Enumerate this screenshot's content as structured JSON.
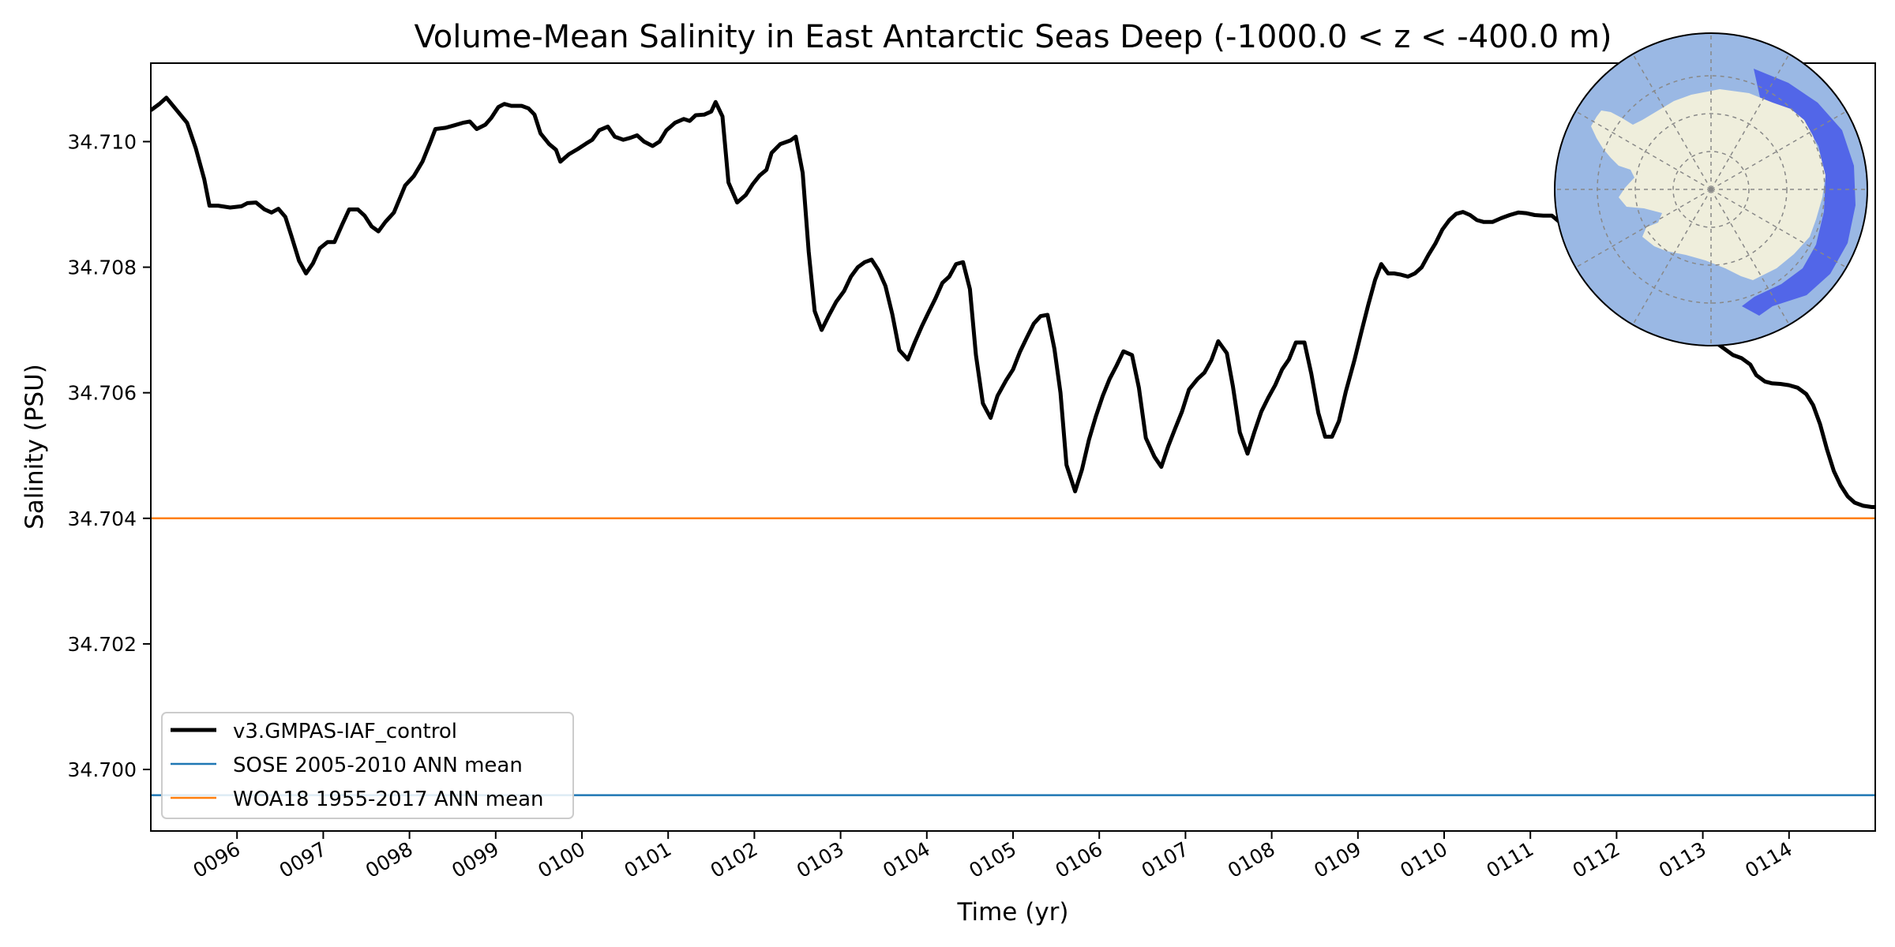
{
  "chart_data": {
    "type": "line",
    "title": "Volume-Mean Salinity in East Antarctic Seas Deep (-1000.0 < z < -400.0 m)",
    "xlabel": "Time (yr)",
    "ylabel": "Salinity (PSU)",
    "xlim": [
      95.0,
      115.0
    ],
    "ylim": [
      34.69902,
      34.71125
    ],
    "x_ticks": [
      96,
      97,
      98,
      99,
      100,
      101,
      102,
      103,
      104,
      105,
      106,
      107,
      108,
      109,
      110,
      111,
      112,
      113,
      114
    ],
    "x_tick_labels": [
      "0096",
      "0097",
      "0098",
      "0099",
      "0100",
      "0101",
      "0102",
      "0103",
      "0104",
      "0105",
      "0106",
      "0107",
      "0108",
      "0109",
      "0110",
      "0111",
      "0112",
      "0113",
      "0114"
    ],
    "y_ticks": [
      34.7,
      34.702,
      34.704,
      34.706,
      34.708,
      34.71
    ],
    "y_tick_labels": [
      "34.700",
      "34.702",
      "34.704",
      "34.706",
      "34.708",
      "34.710"
    ],
    "grid": false,
    "legend_position": "lower-left",
    "series": [
      {
        "name": "v3.GMPAS-IAF_control",
        "color": "#000000",
        "points": [
          [
            95.0,
            34.7105
          ],
          [
            95.1,
            34.7106
          ],
          [
            95.18,
            34.7107
          ],
          [
            95.3,
            34.7105
          ],
          [
            95.42,
            34.7103
          ],
          [
            95.52,
            34.7099
          ],
          [
            95.62,
            34.7094
          ],
          [
            95.68,
            34.70898
          ],
          [
            95.78,
            34.70898
          ],
          [
            95.92,
            34.70895
          ],
          [
            96.05,
            34.70897
          ],
          [
            96.12,
            34.70902
          ],
          [
            96.22,
            34.70903
          ],
          [
            96.32,
            34.70892
          ],
          [
            96.4,
            34.70887
          ],
          [
            96.48,
            34.70893
          ],
          [
            96.56,
            34.7088
          ],
          [
            96.63,
            34.7085
          ],
          [
            96.72,
            34.7081
          ],
          [
            96.8,
            34.7079
          ],
          [
            96.88,
            34.70806
          ],
          [
            96.96,
            34.7083
          ],
          [
            97.05,
            34.7084
          ],
          [
            97.13,
            34.7084
          ],
          [
            97.22,
            34.70868
          ],
          [
            97.3,
            34.70892
          ],
          [
            97.4,
            34.70892
          ],
          [
            97.48,
            34.70882
          ],
          [
            97.56,
            34.70865
          ],
          [
            97.64,
            34.70857
          ],
          [
            97.72,
            34.70872
          ],
          [
            97.82,
            34.70887
          ],
          [
            97.95,
            34.7093
          ],
          [
            98.05,
            34.70945
          ],
          [
            98.15,
            34.70968
          ],
          [
            98.25,
            34.71002
          ],
          [
            98.3,
            34.7102
          ],
          [
            98.42,
            34.71022
          ],
          [
            98.52,
            34.71026
          ],
          [
            98.62,
            34.7103
          ],
          [
            98.7,
            34.71032
          ],
          [
            98.78,
            34.7102
          ],
          [
            98.88,
            34.71027
          ],
          [
            98.95,
            34.71038
          ],
          [
            99.03,
            34.71055
          ],
          [
            99.1,
            34.7106
          ],
          [
            99.18,
            34.71057
          ],
          [
            99.3,
            34.71057
          ],
          [
            99.38,
            34.71053
          ],
          [
            99.45,
            34.71043
          ],
          [
            99.52,
            34.71013
          ],
          [
            99.62,
            34.70996
          ],
          [
            99.7,
            34.70987
          ],
          [
            99.75,
            34.70968
          ],
          [
            99.85,
            34.7098
          ],
          [
            99.95,
            34.70988
          ],
          [
            100.05,
            34.70997
          ],
          [
            100.12,
            34.71003
          ],
          [
            100.2,
            34.71018
          ],
          [
            100.3,
            34.71024
          ],
          [
            100.38,
            34.71008
          ],
          [
            100.48,
            34.71003
          ],
          [
            100.56,
            34.71006
          ],
          [
            100.64,
            34.7101
          ],
          [
            100.72,
            34.71
          ],
          [
            100.82,
            34.70993
          ],
          [
            100.9,
            34.71
          ],
          [
            100.98,
            34.71018
          ],
          [
            101.08,
            34.7103
          ],
          [
            101.18,
            34.71036
          ],
          [
            101.25,
            34.71033
          ],
          [
            101.32,
            34.71042
          ],
          [
            101.42,
            34.71043
          ],
          [
            101.5,
            34.71048
          ],
          [
            101.55,
            34.71063
          ],
          [
            101.63,
            34.7104
          ],
          [
            101.7,
            34.70935
          ],
          [
            101.8,
            34.70903
          ],
          [
            101.9,
            34.70915
          ],
          [
            101.98,
            34.70932
          ],
          [
            102.06,
            34.70946
          ],
          [
            102.14,
            34.70955
          ],
          [
            102.2,
            34.70982
          ],
          [
            102.3,
            34.70996
          ],
          [
            102.42,
            34.71002
          ],
          [
            102.48,
            34.71008
          ],
          [
            102.56,
            34.7095
          ],
          [
            102.63,
            34.70825
          ],
          [
            102.7,
            34.7073
          ],
          [
            102.78,
            34.707
          ],
          [
            102.86,
            34.70722
          ],
          [
            102.95,
            34.70745
          ],
          [
            103.04,
            34.70762
          ],
          [
            103.12,
            34.70785
          ],
          [
            103.2,
            34.708
          ],
          [
            103.28,
            34.70808
          ],
          [
            103.36,
            34.70812
          ],
          [
            103.44,
            34.70795
          ],
          [
            103.52,
            34.7077
          ],
          [
            103.6,
            34.70725
          ],
          [
            103.68,
            34.70668
          ],
          [
            103.78,
            34.70653
          ],
          [
            103.86,
            34.7068
          ],
          [
            103.94,
            34.70705
          ],
          [
            104.02,
            34.70728
          ],
          [
            104.1,
            34.7075
          ],
          [
            104.18,
            34.70775
          ],
          [
            104.26,
            34.70785
          ],
          [
            104.34,
            34.70805
          ],
          [
            104.42,
            34.70808
          ],
          [
            104.5,
            34.70765
          ],
          [
            104.57,
            34.7066
          ],
          [
            104.65,
            34.70583
          ],
          [
            104.74,
            34.7056
          ],
          [
            104.82,
            34.70595
          ],
          [
            104.92,
            34.7062
          ],
          [
            105.0,
            34.70637
          ],
          [
            105.08,
            34.70665
          ],
          [
            105.16,
            34.70688
          ],
          [
            105.24,
            34.7071
          ],
          [
            105.32,
            34.70722
          ],
          [
            105.4,
            34.70724
          ],
          [
            105.48,
            34.7067
          ],
          [
            105.55,
            34.706
          ],
          [
            105.62,
            34.70485
          ],
          [
            105.72,
            34.70443
          ],
          [
            105.8,
            34.70478
          ],
          [
            105.88,
            34.70525
          ],
          [
            105.96,
            34.70562
          ],
          [
            106.04,
            34.70595
          ],
          [
            106.12,
            34.70622
          ],
          [
            106.2,
            34.70643
          ],
          [
            106.28,
            34.70666
          ],
          [
            106.38,
            34.7066
          ],
          [
            106.46,
            34.70608
          ],
          [
            106.54,
            34.70528
          ],
          [
            106.64,
            34.70498
          ],
          [
            106.72,
            34.70482
          ],
          [
            106.8,
            34.70515
          ],
          [
            106.88,
            34.70543
          ],
          [
            106.96,
            34.7057
          ],
          [
            107.04,
            34.70605
          ],
          [
            107.14,
            34.70622
          ],
          [
            107.22,
            34.70632
          ],
          [
            107.3,
            34.70652
          ],
          [
            107.38,
            34.70682
          ],
          [
            107.48,
            34.70663
          ],
          [
            107.55,
            34.7061
          ],
          [
            107.63,
            34.70537
          ],
          [
            107.72,
            34.70503
          ],
          [
            107.8,
            34.70538
          ],
          [
            107.88,
            34.7057
          ],
          [
            107.96,
            34.70592
          ],
          [
            108.04,
            34.70612
          ],
          [
            108.12,
            34.70637
          ],
          [
            108.2,
            34.70653
          ],
          [
            108.28,
            34.7068
          ],
          [
            108.38,
            34.7068
          ],
          [
            108.46,
            34.7063
          ],
          [
            108.54,
            34.70568
          ],
          [
            108.62,
            34.7053
          ],
          [
            108.7,
            34.7053
          ],
          [
            108.78,
            34.70555
          ],
          [
            108.86,
            34.70602
          ],
          [
            108.96,
            34.70652
          ],
          [
            109.04,
            34.70697
          ],
          [
            109.12,
            34.7074
          ],
          [
            109.2,
            34.7078
          ],
          [
            109.27,
            34.70805
          ],
          [
            109.35,
            34.7079
          ],
          [
            109.42,
            34.7079
          ],
          [
            109.5,
            34.70788
          ],
          [
            109.58,
            34.70785
          ],
          [
            109.66,
            34.7079
          ],
          [
            109.74,
            34.708
          ],
          [
            109.82,
            34.7082
          ],
          [
            109.9,
            34.70838
          ],
          [
            109.98,
            34.7086
          ],
          [
            110.06,
            34.70875
          ],
          [
            110.14,
            34.70885
          ],
          [
            110.22,
            34.70888
          ],
          [
            110.3,
            34.70883
          ],
          [
            110.38,
            34.70875
          ],
          [
            110.46,
            34.70872
          ],
          [
            110.56,
            34.70872
          ],
          [
            110.66,
            34.70878
          ],
          [
            110.76,
            34.70883
          ],
          [
            110.86,
            34.70887
          ],
          [
            110.95,
            34.70886
          ],
          [
            111.05,
            34.70883
          ],
          [
            111.15,
            34.70882
          ],
          [
            111.25,
            34.70882
          ],
          [
            112.95,
            34.7069
          ],
          [
            113.05,
            34.70688
          ],
          [
            113.15,
            34.7068
          ],
          [
            113.25,
            34.7067
          ],
          [
            113.35,
            34.7066
          ],
          [
            113.45,
            34.70655
          ],
          [
            113.55,
            34.70645
          ],
          [
            113.62,
            34.70628
          ],
          [
            113.72,
            34.70618
          ],
          [
            113.8,
            34.70615
          ],
          [
            113.9,
            34.70614
          ],
          [
            114.0,
            34.70612
          ],
          [
            114.1,
            34.70608
          ],
          [
            114.2,
            34.70598
          ],
          [
            114.28,
            34.7058
          ],
          [
            114.36,
            34.7055
          ],
          [
            114.44,
            34.7051
          ],
          [
            114.52,
            34.70475
          ],
          [
            114.6,
            34.70452
          ],
          [
            114.68,
            34.70435
          ],
          [
            114.76,
            34.70425
          ],
          [
            114.86,
            34.7042
          ],
          [
            114.96,
            34.70418
          ],
          [
            115.0,
            34.70418
          ]
        ]
      },
      {
        "name": "SOSE 2005-2010 ANN mean",
        "color": "#1f77b4",
        "value": 34.69959
      },
      {
        "name": "WOA18 1955-2017 ANN mean",
        "color": "#ff7f0e",
        "value": 34.704
      }
    ],
    "inset_map": {
      "description": "South polar stereographic map of Antarctica",
      "ocean_color": "#9ab8e4",
      "land_color": "#efeedc",
      "region_color": "#4a5de8",
      "region": "East Antarctic Seas"
    }
  }
}
